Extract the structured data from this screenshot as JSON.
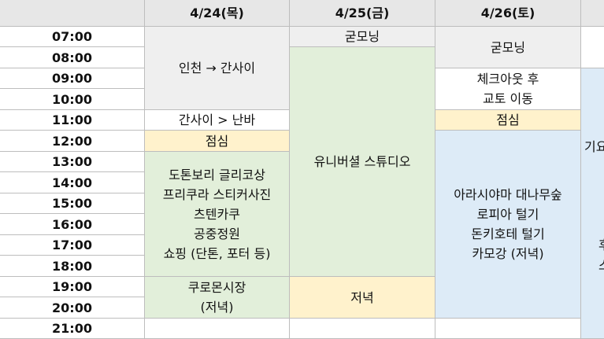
{
  "headers": {
    "corner": "",
    "d1": "4/24(목)",
    "d2": "4/25(금)",
    "d3": "4/26(토)",
    "d4": ""
  },
  "times": [
    "07:00",
    "08:00",
    "09:00",
    "10:00",
    "11:00",
    "12:00",
    "13:00",
    "14:00",
    "15:00",
    "16:00",
    "17:00",
    "18:00",
    "19:00",
    "20:00",
    "21:00"
  ],
  "day1": {
    "e1": "인천 → 간사이",
    "e2": "간사이 > 난바",
    "e3": "점심",
    "e4": [
      "도톤보리 글리코상",
      "프리쿠라 스티커사진",
      "츠텐카쿠",
      "공중정원",
      "쇼핑 (단톤, 포터 등)"
    ],
    "e5": [
      "쿠로몬시장",
      "(저녁)"
    ],
    "e6": ""
  },
  "day2": {
    "e1": "굳모닝",
    "e2": "유니버셜 스튜디오",
    "e3": "저녁",
    "e4": ""
  },
  "day3": {
    "e1": "굳모닝",
    "e2": [
      "체크아웃 후",
      "교토 이동"
    ],
    "e3": "점심",
    "e4": [
      "아라시야마 대나무숲",
      "로피아 털기",
      "돈키호테 털기",
      "카모강 (저녁)"
    ],
    "e5": ""
  },
  "day4": {
    "e1": "",
    "e2": "기요",
    "e3": "후",
    "e4": "스"
  },
  "colors": {
    "header": "#e7e7e7",
    "yellow": "#fff2cc",
    "green": "#e2efda",
    "blue": "#ddebf7",
    "gray": "#efefef"
  }
}
